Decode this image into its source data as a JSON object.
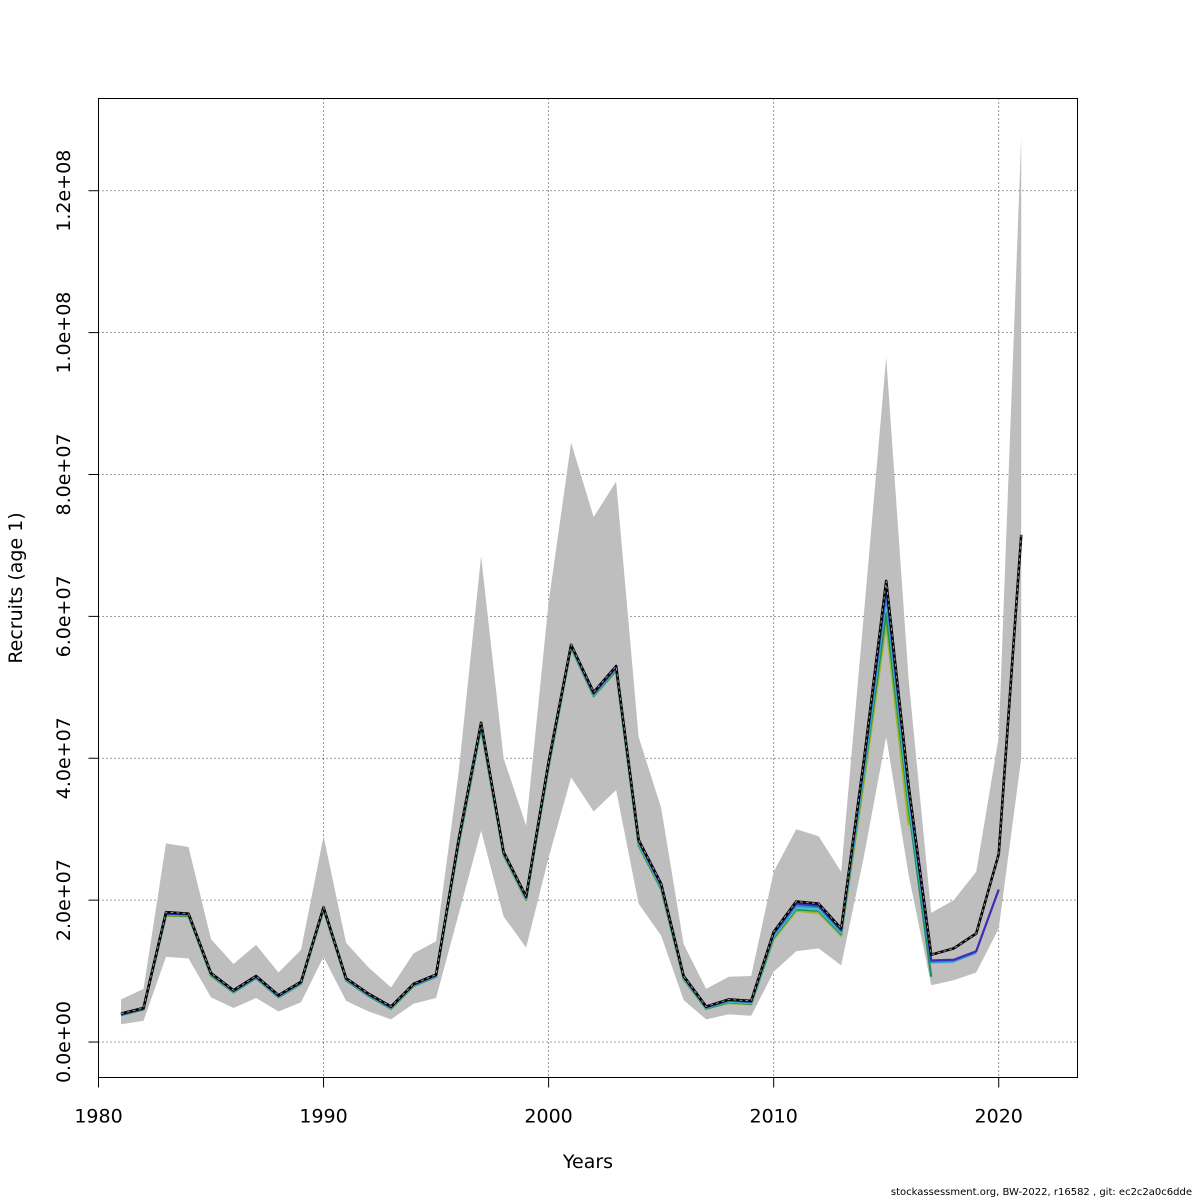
{
  "chart_data": {
    "type": "line",
    "xlabel": "Years",
    "ylabel": "Recruits (age 1)",
    "xlim": [
      1980,
      2023.5
    ],
    "ylim": [
      -5000000,
      133000000
    ],
    "x_ticks": [
      1980,
      1990,
      2000,
      2010,
      2020
    ],
    "x_tick_labels": [
      "1980",
      "1990",
      "2000",
      "2010",
      "2020"
    ],
    "y_ticks": [
      0,
      20000000,
      40000000,
      60000000,
      80000000,
      100000000,
      120000000
    ],
    "y_tick_labels": [
      "0.0e+00",
      "2.0e+07",
      "4.0e+07",
      "6.0e+07",
      "8.0e+07",
      "1.0e+08",
      "1.2e+08"
    ],
    "grid": true,
    "confidence_band": {
      "color": "#bebebe",
      "x": [
        1981,
        1982,
        1983,
        1984,
        1985,
        1986,
        1987,
        1988,
        1989,
        1990,
        1991,
        1992,
        1993,
        1994,
        1995,
        1996,
        1997,
        1998,
        1999,
        2000,
        2001,
        2002,
        2003,
        2004,
        2005,
        2006,
        2007,
        2008,
        2009,
        2010,
        2011,
        2012,
        2013,
        2014,
        2015,
        2016,
        2017,
        2018,
        2019,
        2020,
        2021
      ],
      "upper": [
        6000000,
        7500000,
        28000000,
        27500000,
        14500000,
        11000000,
        13700000,
        9800000,
        13000000,
        29000000,
        14000000,
        10500000,
        7700000,
        12500000,
        14200000,
        38000000,
        68500000,
        40000000,
        30500000,
        62000000,
        84500000,
        74000000,
        79000000,
        43000000,
        33000000,
        13800000,
        7500000,
        9200000,
        9300000,
        24000000,
        30000000,
        29000000,
        24000000,
        60000000,
        96500000,
        51000000,
        18200000,
        20000000,
        24000000,
        43000000,
        127500000
      ],
      "lower": [
        2500000,
        3000000,
        12000000,
        11800000,
        6300000,
        4800000,
        6200000,
        4300000,
        5600000,
        12000000,
        5800000,
        4300000,
        3200000,
        5400000,
        6200000,
        18000000,
        29800000,
        17700000,
        13300000,
        26000000,
        37300000,
        32500000,
        35500000,
        19500000,
        15000000,
        5900000,
        3200000,
        3900000,
        3700000,
        9900000,
        12800000,
        13200000,
        10800000,
        26000000,
        43000000,
        23500000,
        8000000,
        8700000,
        9800000,
        16000000,
        40000000
      ]
    },
    "series": [
      {
        "color": "#000000",
        "dashed": true,
        "x": [
          1981,
          1982,
          1983,
          1984,
          1985,
          1986,
          1987,
          1988,
          1989,
          1990,
          1991,
          1992,
          1993,
          1994,
          1995,
          1996,
          1997,
          1998,
          1999,
          2000,
          2001,
          2002,
          2003,
          2004,
          2005,
          2006,
          2007,
          2008,
          2009,
          2010,
          2011,
          2012,
          2013,
          2014,
          2015,
          2016,
          2017,
          2018,
          2019,
          2020,
          2021
        ],
        "values": [
          4000000,
          4800000,
          18300000,
          18100000,
          9700000,
          7300000,
          9300000,
          6600000,
          8500000,
          19000000,
          9000000,
          6800000,
          5000000,
          8200000,
          9500000,
          28500000,
          45000000,
          26800000,
          20500000,
          39500000,
          56000000,
          49300000,
          53000000,
          28500000,
          22300000,
          9300000,
          5000000,
          6000000,
          5800000,
          15500000,
          19800000,
          19500000,
          16000000,
          39500000,
          65000000,
          36000000,
          12300000,
          13200000,
          15300000,
          26500000,
          71500000
        ]
      },
      {
        "color": "#3b2db8",
        "dashed": false,
        "x": [
          1981,
          1982,
          1983,
          1984,
          1985,
          1986,
          1987,
          1988,
          1989,
          1990,
          1991,
          1992,
          1993,
          1994,
          1995,
          1996,
          1997,
          1998,
          1999,
          2000,
          2001,
          2002,
          2003,
          2004,
          2005,
          2006,
          2007,
          2008,
          2009,
          2010,
          2011,
          2012,
          2013,
          2014,
          2015,
          2016,
          2017,
          2018,
          2019,
          2020
        ],
        "values": [
          3900000,
          4700000,
          18100000,
          18000000,
          9600000,
          7200000,
          9200000,
          6500000,
          8400000,
          18900000,
          8900000,
          6700000,
          4900000,
          8100000,
          9400000,
          28300000,
          44800000,
          26700000,
          20400000,
          39300000,
          55900000,
          49100000,
          52800000,
          28300000,
          22100000,
          9200000,
          4900000,
          5900000,
          5700000,
          15300000,
          19500000,
          19200000,
          15800000,
          39000000,
          64000000,
          35500000,
          11500000,
          11600000,
          12800000,
          21500000
        ]
      },
      {
        "color": "#2f8fce",
        "dashed": false,
        "x": [
          1981,
          1982,
          1983,
          1984,
          1985,
          1986,
          1987,
          1988,
          1989,
          1990,
          1991,
          1992,
          1993,
          1994,
          1995,
          1996,
          1997,
          1998,
          1999,
          2000,
          2001,
          2002,
          2003,
          2004,
          2005,
          2006,
          2007,
          2008,
          2009,
          2010,
          2011,
          2012,
          2013,
          2014,
          2015,
          2016,
          2017,
          2018,
          2019
        ],
        "values": [
          3900000,
          4700000,
          18100000,
          18000000,
          9600000,
          7200000,
          9200000,
          6500000,
          8400000,
          18900000,
          8900000,
          6700000,
          4900000,
          8100000,
          9400000,
          28200000,
          44700000,
          26600000,
          20300000,
          39200000,
          55800000,
          49000000,
          52700000,
          28200000,
          22000000,
          9100000,
          4900000,
          5800000,
          5600000,
          15100000,
          19200000,
          19000000,
          15600000,
          38500000,
          63000000,
          35000000,
          11300000,
          11400000,
          12600000
        ]
      },
      {
        "color": "#45c2c8",
        "dashed": false,
        "x": [
          1981,
          1982,
          1983,
          1984,
          1985,
          1986,
          1987,
          1988,
          1989,
          1990,
          1991,
          1992,
          1993,
          1994,
          1995,
          1996,
          1997,
          1998,
          1999,
          2000,
          2001,
          2002,
          2003,
          2004,
          2005,
          2006,
          2007,
          2008,
          2009,
          2010,
          2011,
          2012,
          2013,
          2014,
          2015,
          2016,
          2017,
          2018
        ],
        "values": [
          3900000,
          4700000,
          18000000,
          17900000,
          9500000,
          7100000,
          9100000,
          6400000,
          8300000,
          18800000,
          8800000,
          6600000,
          4800000,
          8000000,
          9300000,
          28000000,
          44500000,
          26500000,
          20200000,
          39000000,
          55700000,
          48900000,
          52600000,
          28000000,
          21800000,
          9000000,
          4800000,
          5700000,
          5500000,
          14900000,
          18900000,
          18700000,
          15400000,
          38000000,
          62500000,
          34000000,
          11200000,
          11300000
        ]
      },
      {
        "color": "#1f8f5a",
        "dashed": false,
        "x": [
          1981,
          1982,
          1983,
          1984,
          1985,
          1986,
          1987,
          1988,
          1989,
          1990,
          1991,
          1992,
          1993,
          1994,
          1995,
          1996,
          1997,
          1998,
          1999,
          2000,
          2001,
          2002,
          2003,
          2004,
          2005,
          2006,
          2007,
          2008,
          2009,
          2010,
          2011,
          2012,
          2013,
          2014,
          2015,
          2016,
          2017
        ],
        "values": [
          3800000,
          4600000,
          17900000,
          17800000,
          9400000,
          7000000,
          9000000,
          6300000,
          8200000,
          18700000,
          8700000,
          6500000,
          4700000,
          7900000,
          9200000,
          27800000,
          44300000,
          26400000,
          20100000,
          38800000,
          55600000,
          48800000,
          52400000,
          27800000,
          21600000,
          8900000,
          4700000,
          5600000,
          5400000,
          14700000,
          18700000,
          18500000,
          15200000,
          37500000,
          60500000,
          33000000,
          9200000
        ]
      },
      {
        "color": "#9bb52d",
        "dashed": false,
        "x": [
          1981,
          1982,
          1983,
          1984,
          1985,
          1986,
          1987,
          1988,
          1989,
          1990,
          1991,
          1992,
          1993,
          1994,
          1995,
          1996,
          1997,
          1998,
          1999,
          2000,
          2001,
          2002,
          2003,
          2004,
          2005,
          2006,
          2007,
          2008,
          2009,
          2010,
          2011,
          2012,
          2013,
          2014,
          2015,
          2016
        ],
        "values": [
          3800000,
          4600000,
          17800000,
          17700000,
          9300000,
          7000000,
          9000000,
          6300000,
          8200000,
          18600000,
          8700000,
          6500000,
          4700000,
          7900000,
          9200000,
          27700000,
          44200000,
          26300000,
          20000000,
          38700000,
          55500000,
          48700000,
          52300000,
          27600000,
          21500000,
          8800000,
          4700000,
          5500000,
          5300000,
          14500000,
          18500000,
          18200000,
          15000000,
          36500000,
          59000000,
          30500000
        ]
      }
    ]
  },
  "footer": {
    "text": "stockassessment.org, BW-2022, r16582 , git: ec2c2a0c6dde"
  }
}
